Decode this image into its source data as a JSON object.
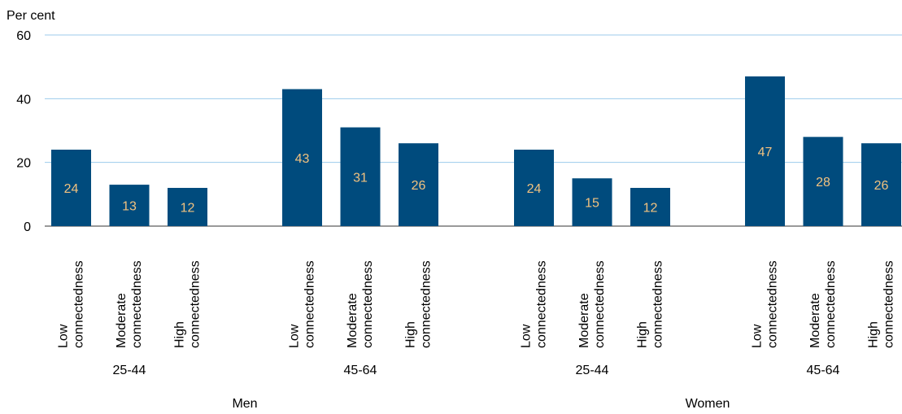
{
  "chart_data": {
    "type": "bar",
    "ylabel": "Per cent",
    "ylim": [
      0,
      60
    ],
    "yticks": [
      0,
      20,
      40,
      60
    ],
    "grid": true,
    "legend": "none",
    "colors": {
      "bar": "#004b7d",
      "value_label": "#f2c27f",
      "grid": "#9ccbeb",
      "axis": "#333333",
      "text": "#000000"
    },
    "groups": [
      {
        "sex": "Men",
        "age": "25-44",
        "bars": [
          {
            "line1": "Low",
            "line2": "connectedness",
            "value": 24
          },
          {
            "line1": "Moderate",
            "line2": "connectedness",
            "value": 13
          },
          {
            "line1": "High",
            "line2": "connectedness",
            "value": 12
          }
        ]
      },
      {
        "sex": "Men",
        "age": "45-64",
        "bars": [
          {
            "line1": "Low",
            "line2": "connectedness",
            "value": 43
          },
          {
            "line1": "Moderate",
            "line2": "connectedness",
            "value": 31
          },
          {
            "line1": "High",
            "line2": "connectedness",
            "value": 26
          }
        ]
      },
      {
        "sex": "Women",
        "age": "25-44",
        "bars": [
          {
            "line1": "Low",
            "line2": "connectedness",
            "value": 24
          },
          {
            "line1": "Moderate",
            "line2": "connectedness",
            "value": 15
          },
          {
            "line1": "High",
            "line2": "connectedness",
            "value": 12
          }
        ]
      },
      {
        "sex": "Women",
        "age": "45-64",
        "bars": [
          {
            "line1": "Low",
            "line2": "connectedness",
            "value": 47
          },
          {
            "line1": "Moderate",
            "line2": "connectedness",
            "value": 28
          },
          {
            "line1": "High",
            "line2": "connectedness",
            "value": 26
          }
        ]
      }
    ],
    "sexes": [
      "Men",
      "Women"
    ]
  }
}
